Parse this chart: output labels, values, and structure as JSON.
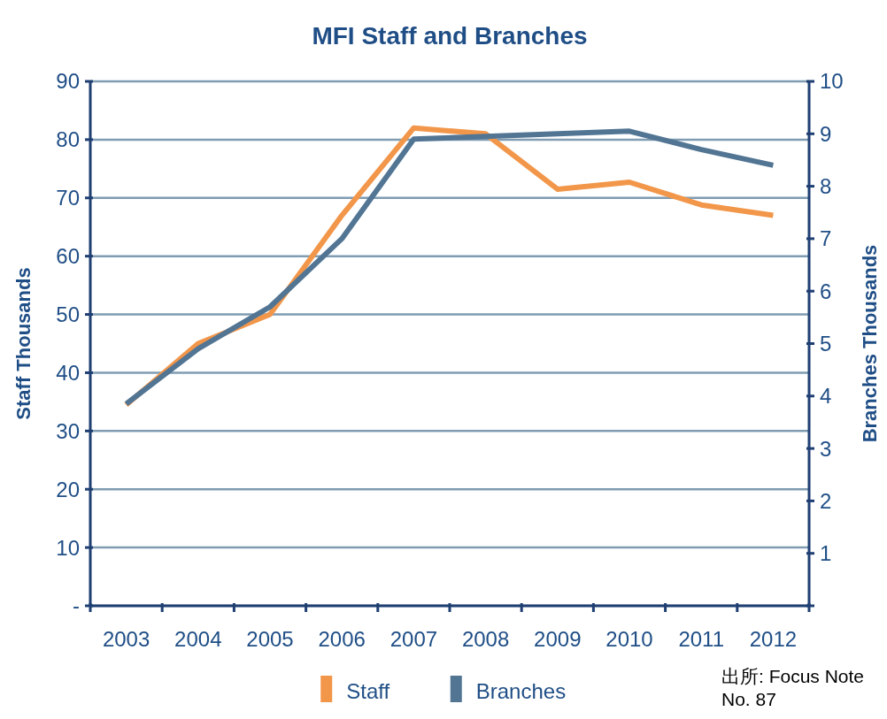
{
  "chart_data": {
    "type": "line",
    "title": "MFI Staff and Branches",
    "ylabel": "Staff Thousands",
    "y2label": "Branches Thousands",
    "categories": [
      "2003",
      "2004",
      "2005",
      "2006",
      "2007",
      "2008",
      "2009",
      "2010",
      "2011",
      "2012"
    ],
    "series": [
      {
        "name": "Staff",
        "color": "#f2964a",
        "values": [
          34.5,
          45,
          50,
          67,
          82,
          81,
          71.5,
          72.7,
          68.8,
          67
        ]
      },
      {
        "name": "Branches",
        "color": "#527594",
        "axis": "y2",
        "values": [
          3.85,
          4.9,
          5.7,
          7.0,
          8.9,
          8.95,
          9.0,
          9.05,
          8.7,
          8.4
        ]
      }
    ],
    "ylim": [
      0,
      90
    ],
    "yticks": [
      {
        "value": 0,
        "label": "-"
      },
      10,
      20,
      30,
      40,
      50,
      60,
      70,
      80,
      90
    ],
    "y2lim": [
      0,
      10
    ],
    "y2ticks": [
      {
        "value": 0,
        "label": null
      },
      1,
      2,
      3,
      4,
      5,
      6,
      7,
      8,
      9,
      10
    ],
    "grid": "y",
    "legend": "bottom",
    "annotations": [
      "出所: Focus Note No. 87"
    ]
  }
}
